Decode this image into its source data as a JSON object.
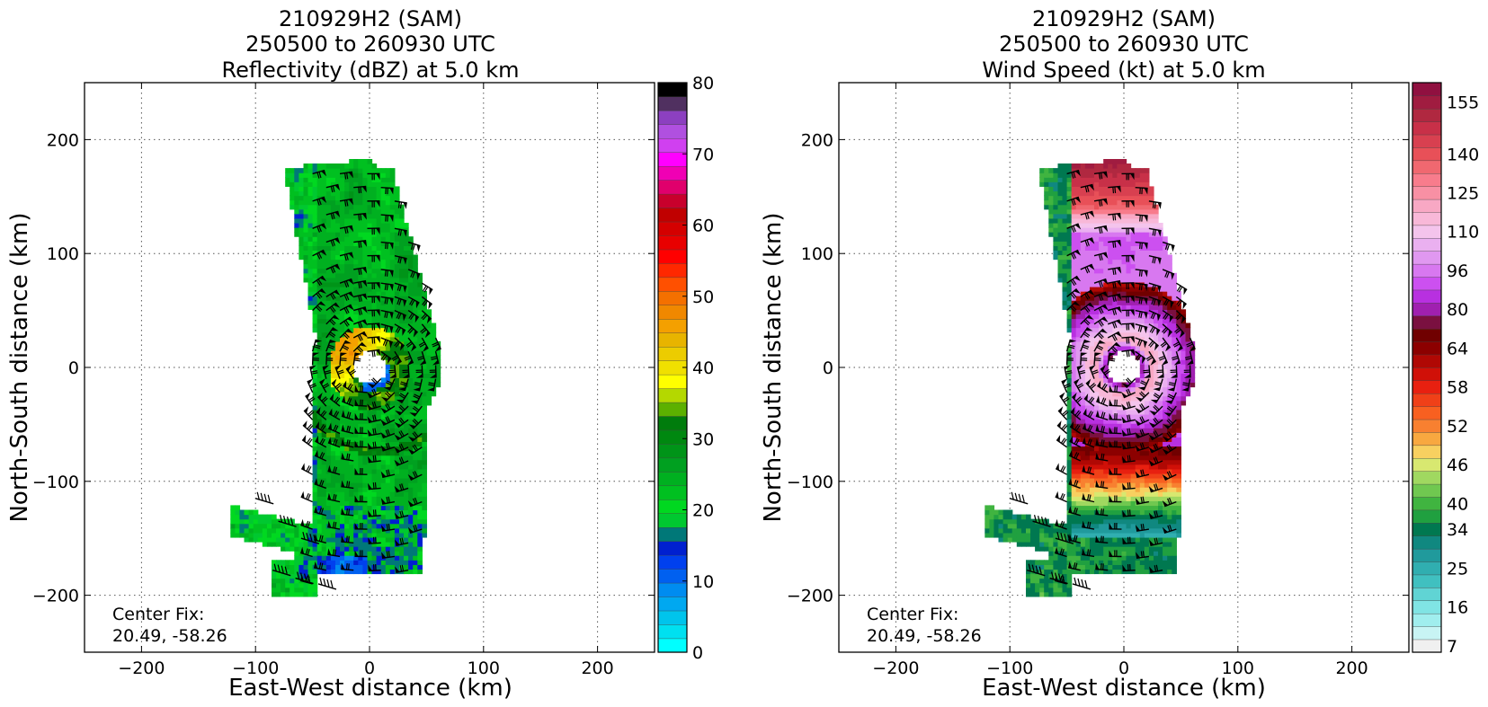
{
  "chart_data": [
    {
      "type": "heatmap",
      "title_lines": [
        "210929H2 (SAM)",
        "250500 to 260930 UTC",
        "Reflectivity (dBZ) at 5.0 km"
      ],
      "xlabel": "East-West distance (km)",
      "ylabel": "North-South distance (km)",
      "xlim": [
        -250,
        250
      ],
      "ylim": [
        -250,
        250
      ],
      "xticks": [
        -200,
        -100,
        0,
        100,
        200
      ],
      "yticks": [
        -200,
        -100,
        0,
        100,
        200
      ],
      "xtick_labels": [
        "−200",
        "−100",
        "0",
        "100",
        "200"
      ],
      "ytick_labels": [
        "−200",
        "−100",
        "0",
        "100",
        "200"
      ],
      "grid": true,
      "center_fix_label": "Center Fix:",
      "center_fix_value": "20.49, -58.26",
      "variable": "reflectivity",
      "colorbar": {
        "min": 0,
        "max": 80,
        "tick_values": [
          0,
          10,
          20,
          30,
          40,
          50,
          60,
          70,
          80
        ],
        "tick_labels": [
          "0",
          "10",
          "20",
          "30",
          "40",
          "50",
          "60",
          "70",
          "80"
        ],
        "colors": [
          "#00ffff",
          "#00e0f0",
          "#00c4ec",
          "#00a8f0",
          "#008cf0",
          "#0060f0",
          "#0040ee",
          "#0020d0",
          "#007878",
          "#00c830",
          "#00d820",
          "#00c020",
          "#00b020",
          "#00a020",
          "#009418",
          "#008810",
          "#007c0c",
          "#5cb000",
          "#b4d800",
          "#ffff00",
          "#f0e000",
          "#eccc00",
          "#e8b400",
          "#f4a000",
          "#f08800",
          "#f47000",
          "#ff5000",
          "#ff2800",
          "#ff0000",
          "#e80000",
          "#d40000",
          "#c00000",
          "#c8002c",
          "#e0006c",
          "#f000b4",
          "#ff00ff",
          "#d040f0",
          "#b050e0",
          "#8c40c0",
          "#503060",
          "#000000"
        ]
      }
    },
    {
      "type": "heatmap",
      "title_lines": [
        "210929H2 (SAM)",
        "250500 to 260930 UTC",
        "Wind Speed (kt) at 5.0 km"
      ],
      "xlabel": "East-West distance (km)",
      "ylabel": "North-South distance (km)",
      "xlim": [
        -250,
        250
      ],
      "ylim": [
        -250,
        250
      ],
      "xticks": [
        -200,
        -100,
        0,
        100,
        200
      ],
      "yticks": [
        -200,
        -100,
        0,
        100,
        200
      ],
      "xtick_labels": [
        "−200",
        "−100",
        "0",
        "100",
        "200"
      ],
      "ytick_labels": [
        "−200",
        "−100",
        "0",
        "100",
        "200"
      ],
      "grid": true,
      "center_fix_label": "Center Fix:",
      "center_fix_value": "20.49, -58.26",
      "variable": "wind",
      "colorbar": {
        "tick_labels": [
          "7",
          "16",
          "25",
          "34",
          "40",
          "46",
          "52",
          "58",
          "64",
          "80",
          "96",
          "110",
          "125",
          "140",
          "155"
        ],
        "colors": [
          "#f0f0f0",
          "#c8f4f4",
          "#a0eeee",
          "#80e4e4",
          "#60d4d4",
          "#40c0c0",
          "#30aeb0",
          "#209a9c",
          "#108880",
          "#007850",
          "#20a040",
          "#40b440",
          "#70c850",
          "#a0d860",
          "#d8e870",
          "#f8d060",
          "#f8a840",
          "#f88030",
          "#f86020",
          "#f04018",
          "#e82010",
          "#d01008",
          "#b00804",
          "#8c0000",
          "#700000",
          "#7a1040",
          "#a020b0",
          "#b830e0",
          "#cc50f0",
          "#d878f0",
          "#e098f0",
          "#eab0f0",
          "#f4c4ec",
          "#f8b8d8",
          "#f8a8c4",
          "#f890a4",
          "#f87c8c",
          "#f06870",
          "#e85058",
          "#d84050",
          "#c83048",
          "#b02840",
          "#a01c40",
          "#901040"
        ],
        "label_indices": [
          0,
          3,
          6,
          9,
          11,
          14,
          17,
          20,
          23,
          26,
          29,
          32,
          35,
          38,
          42
        ]
      }
    }
  ]
}
